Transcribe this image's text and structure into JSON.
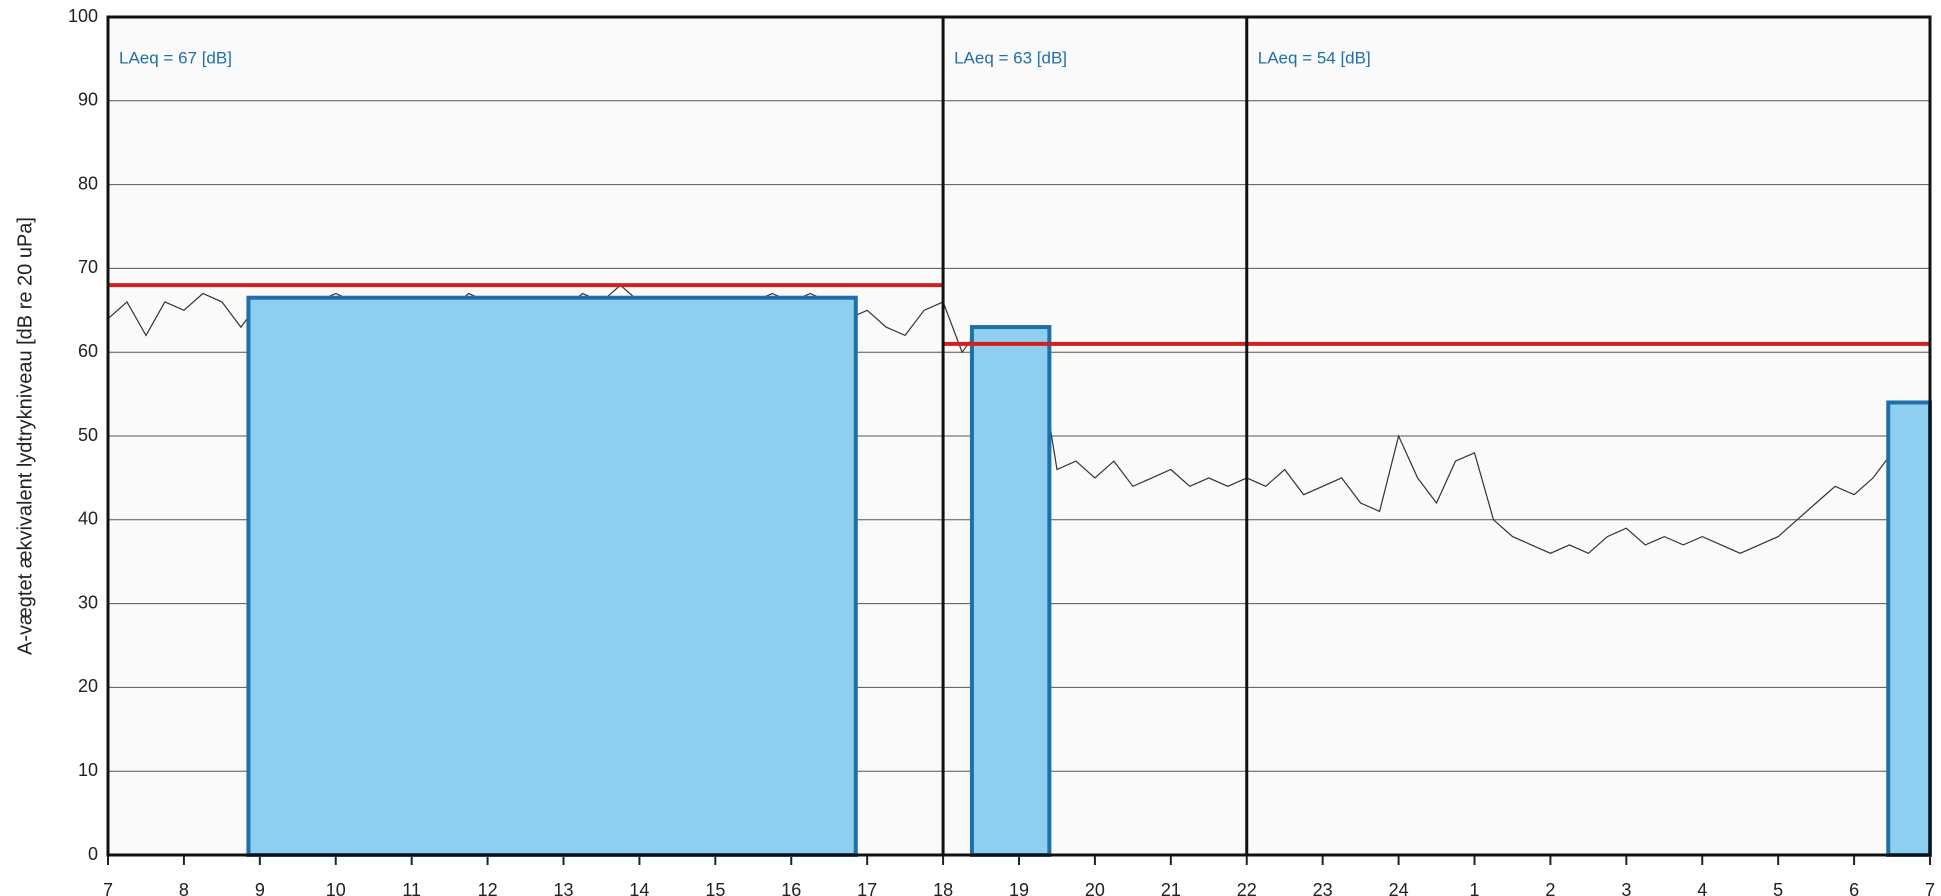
{
  "chart_data": {
    "type": "line",
    "y_label": "A-vægtet ækvivalent lydtrykniveau [dB re 20 uPa]",
    "xlim": [
      7,
      31
    ],
    "xticks": [
      7,
      8,
      9,
      10,
      11,
      12,
      13,
      14,
      15,
      16,
      17,
      18,
      19,
      20,
      21,
      22,
      23,
      24,
      {
        "value": 25,
        "label": "1"
      },
      {
        "value": 26,
        "label": "2"
      },
      {
        "value": 27,
        "label": "3"
      },
      {
        "value": 28,
        "label": "4"
      },
      {
        "value": 29,
        "label": "5"
      },
      {
        "value": 30,
        "label": "6"
      },
      {
        "value": 31,
        "label": "7"
      }
    ],
    "ylim": [
      0,
      100
    ],
    "yticks": [
      0,
      10,
      20,
      30,
      40,
      50,
      60,
      70,
      80,
      90,
      100
    ],
    "grid": true,
    "x": [
      7,
      7.25,
      7.5,
      7.75,
      8,
      8.25,
      8.5,
      8.75,
      9,
      9.25,
      9.5,
      9.75,
      10,
      10.25,
      10.5,
      10.75,
      11,
      11.25,
      11.5,
      11.75,
      12,
      12.25,
      12.5,
      12.75,
      13,
      13.25,
      13.5,
      13.75,
      14,
      14.25,
      14.5,
      14.75,
      15,
      15.25,
      15.5,
      15.75,
      16,
      16.25,
      16.5,
      16.75,
      17,
      17.25,
      17.5,
      17.75,
      18,
      18.25,
      18.5,
      18.75,
      19,
      19.25,
      19.5,
      19.75,
      20,
      20.25,
      20.5,
      20.75,
      21,
      21.25,
      21.5,
      21.75,
      22,
      22.25,
      22.5,
      22.75,
      23,
      23.25,
      23.5,
      23.75,
      24,
      24.25,
      24.5,
      24.75,
      25,
      25.25,
      25.5,
      25.75,
      26,
      26.25,
      26.5,
      26.75,
      27,
      27.25,
      27.5,
      27.75,
      28,
      28.25,
      28.5,
      28.75,
      29,
      29.25,
      29.5,
      29.75,
      30,
      30.25,
      30.5,
      30.75,
      31
    ],
    "series": [
      {
        "color": "#333333",
        "values": [
          64,
          66,
          62,
          66,
          65,
          67,
          66,
          63,
          66,
          62,
          65,
          66,
          67,
          66,
          65,
          66,
          64,
          66,
          65,
          67,
          66,
          64,
          66,
          66,
          65,
          67,
          66,
          68,
          66,
          64,
          62,
          66,
          65,
          66,
          66,
          67,
          66,
          67,
          66,
          64,
          65,
          63,
          62,
          65,
          66,
          60,
          63,
          62,
          61,
          60,
          46,
          47,
          45,
          47,
          44,
          45,
          46,
          44,
          45,
          44,
          45,
          44,
          46,
          43,
          44,
          45,
          42,
          41,
          50,
          45,
          42,
          47,
          48,
          40,
          38,
          37,
          36,
          37,
          36,
          38,
          39,
          37,
          38,
          37,
          38,
          37,
          36,
          37,
          38,
          40,
          42,
          44,
          43,
          45,
          48,
          50,
          52
        ]
      }
    ],
    "periods": [
      {
        "start": 8.85,
        "end": 16.85,
        "level": 66.5
      },
      {
        "start": 18.38,
        "end": 19.4,
        "level": 63
      },
      {
        "start": 30.45,
        "end": 31,
        "level": 54
      }
    ],
    "period_fill": "#8ecff0",
    "period_edge": "#1f6fa8",
    "limits": [
      {
        "start": 7,
        "end": 18,
        "level": 68
      },
      {
        "start": 18,
        "end": 31,
        "level": 61
      }
    ],
    "limit_color": "#d02020",
    "dividers": [
      18,
      22
    ],
    "annotations": [
      "LAeq = 67 [dB]",
      "LAeq = 63 [dB]",
      "LAeq = 54 [dB]"
    ],
    "annotation_color": "#1f6fa8"
  }
}
